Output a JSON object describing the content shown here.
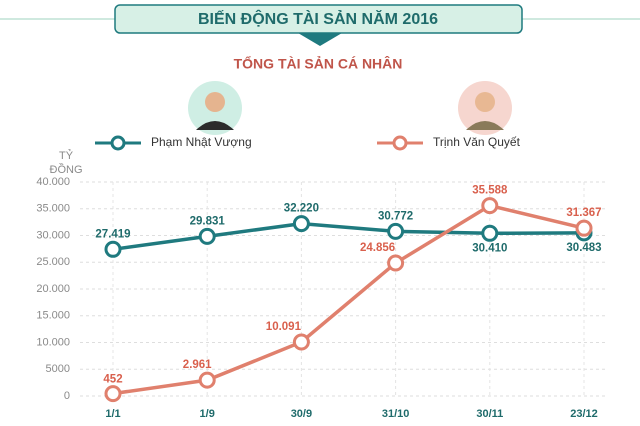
{
  "chart_data": {
    "type": "line",
    "title": "BIẾN ĐỘNG TÀI SẢN NĂM 2016",
    "subtitle": "TỔNG TÀI SẢN CÁ NHÂN",
    "y_label": [
      "TỶ",
      "ĐỒNG"
    ],
    "categories": [
      "1/1",
      "1/9",
      "30/9",
      "31/10",
      "30/11",
      "23/12"
    ],
    "series": [
      {
        "name": "Phạm Nhật Vượng",
        "color": "#1f7a7f",
        "values": [
          27419,
          29831,
          32220,
          30772,
          30410,
          30483
        ],
        "value_labels": [
          "27.419",
          "29.831",
          "32.220",
          "30.772",
          "30.410",
          "30.483"
        ]
      },
      {
        "name": "Trịnh Văn Quyết",
        "color": "#e0806d",
        "values": [
          452,
          2961,
          10091,
          24856,
          35588,
          31367
        ],
        "value_labels": [
          "452",
          "2.961",
          "10.091",
          "24.856",
          "35.588",
          "31.367"
        ]
      }
    ],
    "ylim": [
      0,
      40000
    ],
    "yticks": [
      0,
      5000,
      {
        "value": 10000,
        "label": "10.000"
      },
      {
        "value": 15000,
        "label": "15.000"
      },
      {
        "value": 20000,
        "label": "20.000"
      },
      {
        "value": 25000,
        "label": "25.000"
      },
      {
        "value": 30000,
        "label": "30.000"
      },
      {
        "value": 35000,
        "label": "35.000"
      },
      {
        "value": 40000,
        "label": "40.000"
      }
    ],
    "grid": true
  }
}
